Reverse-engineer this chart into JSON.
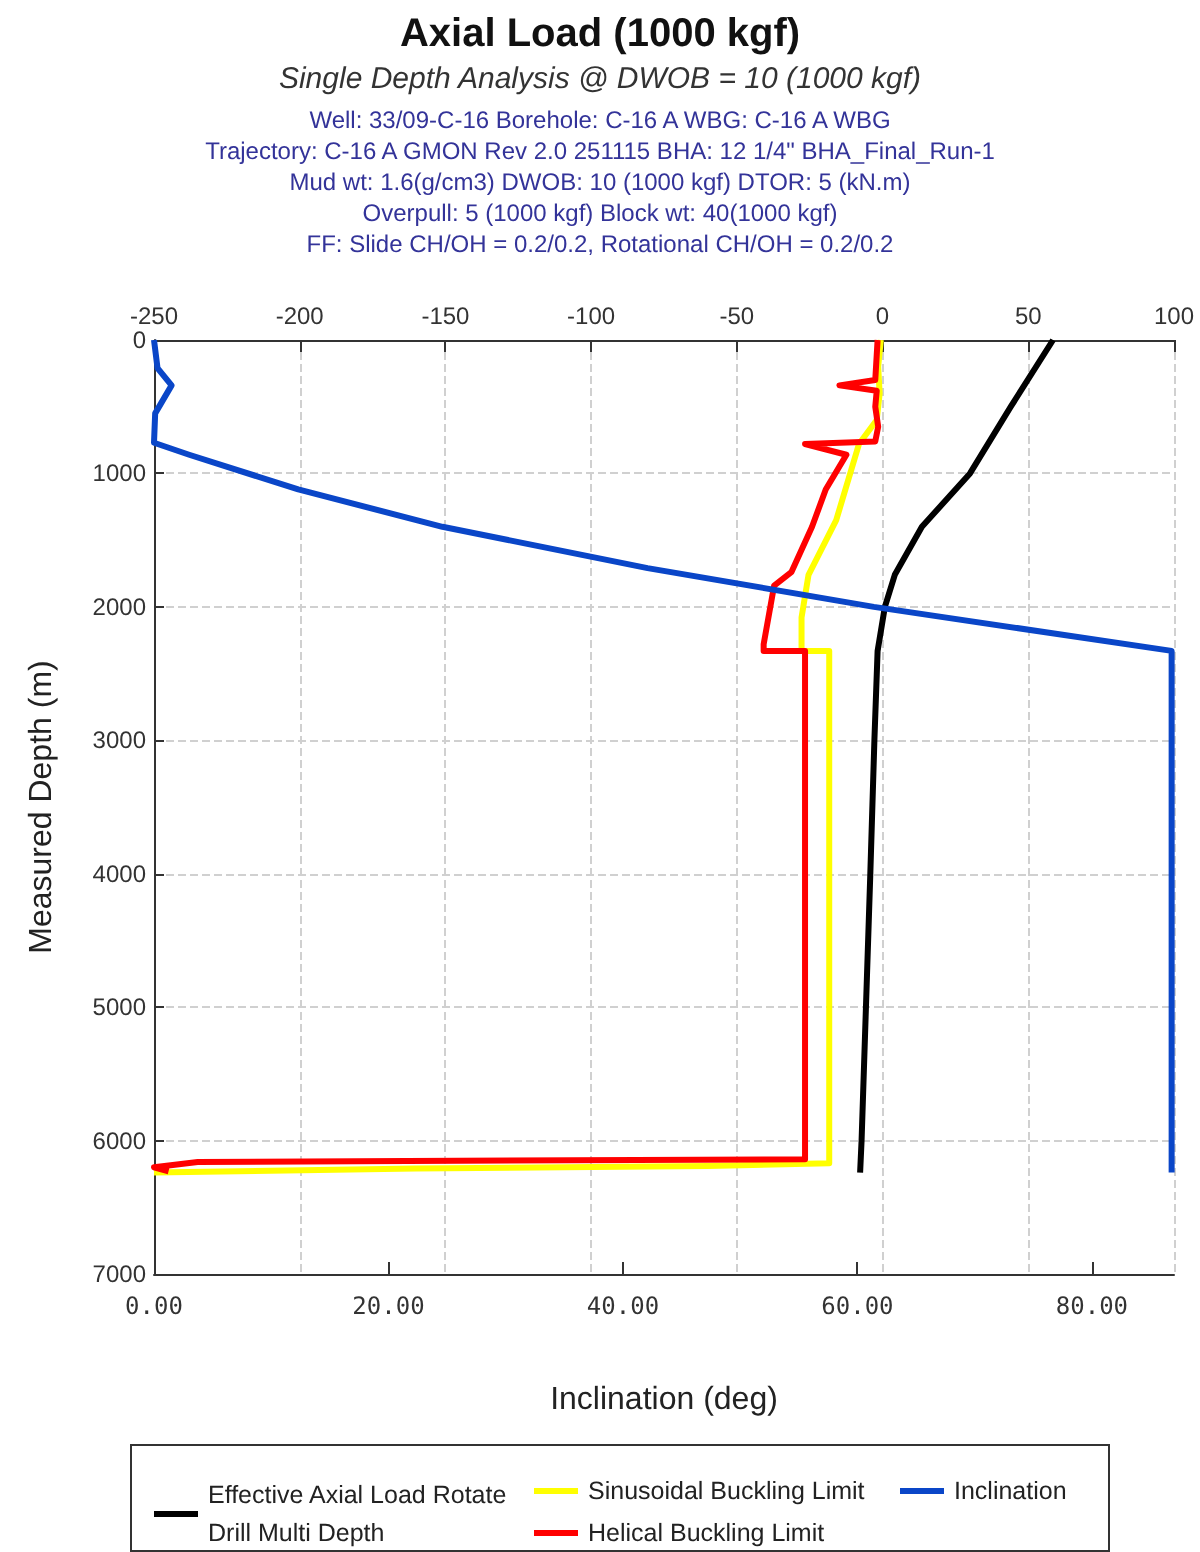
{
  "chart_data": {
    "type": "line",
    "title": "Axial Load (1000 kgf)",
    "subtitle": "Single Depth Analysis @ DWOB = 10 (1000 kgf)",
    "annotations": [
      "Well: 33/09-C-16 Borehole: C-16 A WBG: C-16 A WBG",
      "Trajectory: C-16 A GMON Rev 2.0 251115 BHA: 12 1/4\" BHA_Final_Run-1",
      "Mud wt: 1.6(g/cm3) DWOB: 10 (1000 kgf) DTOR: 5 (kN.m)",
      "Overpull: 5 (1000 kgf) Block wt: 40(1000 kgf)",
      "FF: Slide CH/OH = 0.2/0.2, Rotational CH/OH = 0.2/0.2"
    ],
    "xlabel": "Inclination (deg)",
    "ylabel": "Measured Depth (m)",
    "xlim": [
      0,
      87
    ],
    "xticks": [
      {
        "value": 0,
        "label": "0.00"
      },
      {
        "value": 20,
        "label": "20.00"
      },
      {
        "value": 40,
        "label": "40.00"
      },
      {
        "value": 60,
        "label": "60.00"
      },
      {
        "value": 80,
        "label": "80.00"
      }
    ],
    "x2lim": [
      -250,
      100
    ],
    "x2ticks": [
      -250,
      -200,
      -150,
      -100,
      -50,
      0,
      50,
      100
    ],
    "ylim": [
      7000,
      0
    ],
    "yticks": [
      0,
      1000,
      2000,
      3000,
      4000,
      5000,
      6000,
      7000
    ],
    "grid": true,
    "legend": "bottom",
    "marker": "none",
    "series": [
      {
        "name": "Effective Axial Load Rotate Drill Multi Depth",
        "color": "#000000",
        "axis": "x2",
        "x": [
          58.5,
          44,
          30,
          13.5,
          4.2,
          0.8,
          -1.7,
          -2.8,
          -4.2,
          -5.7,
          -7.2,
          -7.7
        ],
        "values": [
          0,
          500,
          1000,
          1400,
          1760,
          2000,
          2330,
          3000,
          4000,
          5000,
          6000,
          6240
        ]
      },
      {
        "name": "Sinusoidal Buckling Limit",
        "color": "#ffff00",
        "axis": "x2",
        "x": [
          -0.6,
          -1.5,
          -1,
          -2,
          -8.1,
          -15.9,
          -25.4,
          -27.8,
          -27.8,
          -18.3,
          -18.3,
          -60,
          -160,
          -250
        ],
        "values": [
          0,
          200,
          400,
          600,
          780,
          1350,
          1760,
          2080,
          2330,
          2330,
          6170,
          6190,
          6210,
          6240
        ]
      },
      {
        "name": "Helical Buckling Limit",
        "color": "#ff0000",
        "axis": "x2",
        "x": [
          -1.7,
          -2.5,
          -14.8,
          -2,
          -2.5,
          -1.5,
          -2.5,
          -26.6,
          -12.4,
          -19.5,
          -24.2,
          -31.3,
          -37.2,
          -40.8,
          -40.8,
          -26.6,
          -26.6,
          -235,
          -250,
          -245
        ],
        "values": [
          0,
          300,
          340,
          380,
          500,
          650,
          760,
          780,
          860,
          1120,
          1400,
          1740,
          1840,
          2280,
          2330,
          2330,
          6140,
          6160,
          6200,
          6230
        ]
      },
      {
        "name": "Inclination",
        "color": "#0a46c8",
        "x": [
          0,
          0.3,
          1.5,
          0.1,
          0,
          3,
          12.3,
          24.6,
          42.1,
          61.4,
          86.8,
          86.8
        ],
        "values": [
          0,
          210,
          340,
          550,
          770,
          860,
          1120,
          1400,
          1710,
          2000,
          2330,
          6240
        ]
      }
    ]
  }
}
